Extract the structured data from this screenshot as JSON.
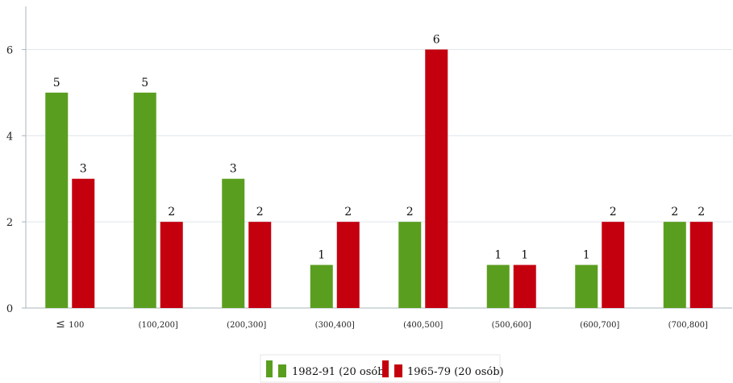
{
  "chart_data": {
    "type": "bar",
    "categories": [
      "≤",
      "(100,200]",
      "(200,300]",
      "(300,400]",
      "(400,500]",
      "(500,600]",
      "(600,700]",
      "(700,800]"
    ],
    "first_category_suffix": "100",
    "series": [
      {
        "name": "1982-91 (20 osób)",
        "color": "#5a9e1f",
        "values": [
          5,
          5,
          3,
          1,
          2,
          1,
          1,
          2
        ]
      },
      {
        "name": "1965-79 (20 osób)",
        "color": "#c4000f",
        "values": [
          3,
          2,
          2,
          2,
          6,
          1,
          2,
          2
        ]
      }
    ],
    "ylim": [
      0,
      7
    ],
    "yticks": [
      0,
      2,
      4,
      6
    ],
    "grid": true,
    "legend_position": "bottom-center",
    "data_labels": true
  }
}
